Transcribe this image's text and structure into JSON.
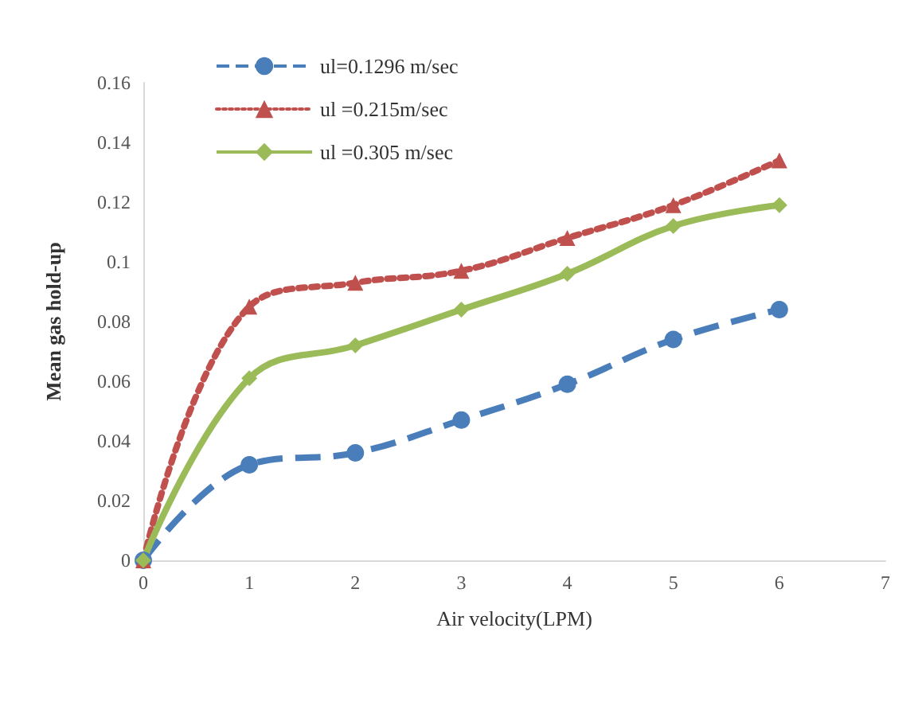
{
  "chart_data": {
    "type": "line",
    "xlabel": "Air velocity(LPM)",
    "ylabel": "Mean gas hold-up",
    "x": [
      0,
      1,
      2,
      3,
      4,
      5,
      6
    ],
    "xlim": [
      0,
      7
    ],
    "xticks": [
      0,
      1,
      2,
      3,
      4,
      5,
      6,
      7
    ],
    "ylim": [
      0,
      0.16
    ],
    "yticks": [
      0,
      0.02,
      0.04,
      0.06,
      0.08,
      0.1,
      0.12,
      0.14,
      0.16
    ],
    "grid": false,
    "legend": "top left",
    "series": [
      {
        "name": "ul=0.1296 m/sec",
        "color": "#4a7ebb",
        "marker": "circle",
        "line_style": "dashed",
        "values": [
          0,
          0.032,
          0.036,
          0.047,
          0.059,
          0.074,
          0.084
        ]
      },
      {
        "name": "ul =0.215m/sec",
        "color": "#c0504d",
        "marker": "triangle",
        "line_style": "dotted",
        "values": [
          0,
          0.085,
          0.093,
          0.097,
          0.108,
          0.119,
          0.134
        ]
      },
      {
        "name": "ul =0.305 m/sec",
        "color": "#9bbb59",
        "marker": "diamond",
        "line_style": "solid",
        "values": [
          0,
          0.061,
          0.072,
          0.084,
          0.096,
          0.112,
          0.119
        ]
      }
    ]
  }
}
